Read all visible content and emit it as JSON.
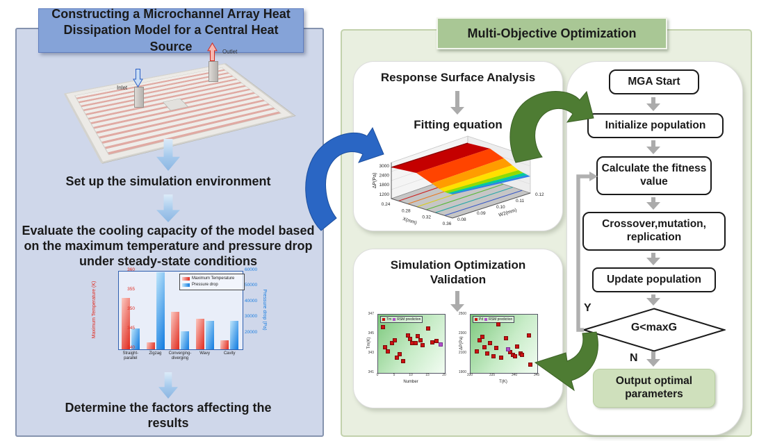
{
  "left_panel": {
    "title": "Constructing a Microchannel Array Heat Dissipation Model for a Central Heat Source",
    "model": {
      "inlet_label": "Inlet",
      "outlet_label": "Outlet"
    },
    "steps": {
      "setup": "Set up the simulation environment",
      "evaluate": "Evaluate the cooling capacity of the model based on the maximum temperature and pressure drop under steady-state conditions",
      "determine": "Determine the factors affecting the results"
    }
  },
  "right_panel": {
    "title": "Multi-Objective Optimization",
    "response_box": {
      "heading": "Response Surface Analysis",
      "subheading": "Fitting equation"
    },
    "validation_box": {
      "heading": "Simulation Optimization Validation"
    },
    "flowchart": {
      "start": "MGA Start",
      "initialize": "Initialize population",
      "fitness": "Calculate the fitness value",
      "crossover": "Crossover,mutation, replication",
      "update": "Update population",
      "decision": "G<maxG",
      "yes_label": "Y",
      "no_label": "N",
      "output": "Output optimal parameters"
    }
  },
  "chart_data": [
    {
      "id": "channel-type-comparison",
      "type": "bar",
      "categories": [
        "Straight-parallel",
        "Zigzag",
        "Converging-diverging",
        "Wavy",
        "Cavity"
      ],
      "series": [
        {
          "name": "Maximum Temperature",
          "axis": "left",
          "color": "#e02a1e",
          "values": [
            353.2,
            341.8,
            349.6,
            347.8,
            342.3
          ]
        },
        {
          "name": "Pressure drop",
          "axis": "right",
          "color": "#1d7fe0",
          "values": [
            23500,
            59500,
            21500,
            28500,
            28500
          ]
        }
      ],
      "left_axis": {
        "label": "Maximum Temperature (K)",
        "min": 340,
        "max": 360,
        "ticks": [
          340,
          345,
          350,
          355,
          360
        ]
      },
      "right_axis": {
        "label": "Pressure drop (Pa)",
        "min": 10000,
        "max": 60000,
        "ticks": [
          20000,
          30000,
          40000,
          50000,
          60000
        ]
      },
      "legend_position": "top-right"
    },
    {
      "id": "response-surface-fit",
      "type": "surface3d",
      "xlabel": "X(mm)",
      "x_ticks": [
        "0.24",
        "0.28",
        "0.32",
        "0.36"
      ],
      "ylabel": "W2(mm)",
      "y_ticks": [
        "0.08",
        "0.09",
        "0.10",
        "0.11",
        "0.12"
      ],
      "zlabel": "ΔP(Pa)",
      "z_ticks": [
        1200,
        1800,
        2400,
        3000
      ],
      "description": "Rainbow-colored fitted response surface, high red plateau at small X dropping to blue at large X, contour projection on gray base plane"
    },
    {
      "id": "validation-scatter-temperature",
      "type": "scatter",
      "legend": [
        "Tm",
        "RSM prediction"
      ],
      "xlabel": "Number",
      "x_ticks": [
        "0",
        "5",
        "10",
        "15",
        "20"
      ],
      "ylabel": "Tm(K)",
      "y_ticks": [
        "341",
        "343",
        "345",
        "347"
      ],
      "marker_color": "#cc1111",
      "highlight_color": "#b050c8",
      "points": [
        [
          0.06,
          0.8
        ],
        [
          0.09,
          0.45
        ],
        [
          0.13,
          0.38
        ],
        [
          0.2,
          0.52
        ],
        [
          0.24,
          0.57
        ],
        [
          0.27,
          0.28
        ],
        [
          0.31,
          0.33
        ],
        [
          0.36,
          0.22
        ],
        [
          0.44,
          0.66
        ],
        [
          0.47,
          0.6
        ],
        [
          0.5,
          0.52
        ],
        [
          0.55,
          0.53
        ],
        [
          0.58,
          0.64
        ],
        [
          0.62,
          0.57
        ],
        [
          0.66,
          0.49
        ],
        [
          0.74,
          0.77
        ],
        [
          0.8,
          0.54
        ],
        [
          0.86,
          0.56
        ]
      ],
      "highlight_point": [
        0.93,
        0.5
      ]
    },
    {
      "id": "validation-scatter-pressure",
      "type": "scatter",
      "legend": [
        "Pd",
        "RSM prediction"
      ],
      "xlabel": "T(K)",
      "x_ticks": [
        "330",
        "335",
        "340",
        "345"
      ],
      "ylabel": "ΔP(Pa)",
      "y_ticks": [
        "1900",
        "2100",
        "2300",
        "2500"
      ],
      "marker_color": "#cc1111",
      "highlight_color": "#b050c8",
      "points": [
        [
          0.08,
          0.38
        ],
        [
          0.12,
          0.57
        ],
        [
          0.17,
          0.63
        ],
        [
          0.2,
          0.45
        ],
        [
          0.24,
          0.34
        ],
        [
          0.28,
          0.52
        ],
        [
          0.33,
          0.3
        ],
        [
          0.37,
          0.44
        ],
        [
          0.41,
          0.84
        ],
        [
          0.45,
          0.27
        ],
        [
          0.52,
          0.61
        ],
        [
          0.58,
          0.37
        ],
        [
          0.62,
          0.32
        ],
        [
          0.66,
          0.3
        ],
        [
          0.69,
          0.47
        ],
        [
          0.74,
          0.35
        ],
        [
          0.76,
          0.32
        ],
        [
          0.86,
          0.66
        ],
        [
          0.89,
          0.16
        ]
      ],
      "highlight_point": [
        0.55,
        0.42
      ]
    }
  ],
  "colors": {
    "left_panel_bg": "#cfd7ea",
    "left_title_bg": "#85a3d8",
    "right_panel_bg": "#e9efe0",
    "right_title_bg": "#a9c795",
    "output_node_bg": "#cfe0bc",
    "blue_arrow": "#2a66c4",
    "green_arrow": "#4e7c33",
    "gray_arrow": "#ababab"
  }
}
